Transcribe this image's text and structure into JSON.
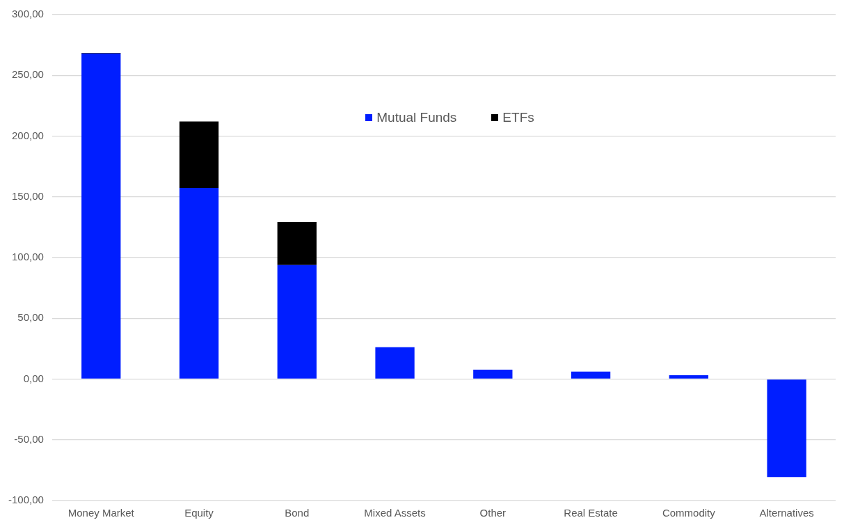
{
  "chart_data": {
    "type": "bar",
    "stacked": true,
    "categories": [
      "Money Market",
      "Equity",
      "Bond",
      "Mixed Assets",
      "Other",
      "Real Estate",
      "Commodity",
      "Alternatives"
    ],
    "series": [
      {
        "name": "Mutual Funds",
        "color": "#001eff",
        "values": [
          268,
          157.3,
          93.8,
          26.2,
          7.7,
          6.2,
          3.1,
          -80.7
        ]
      },
      {
        "name": "ETFs",
        "color": "#000000",
        "values": [
          0.5,
          54.7,
          35.4,
          null,
          null,
          0,
          null,
          null
        ]
      }
    ],
    "ylim": [
      -100,
      300
    ],
    "yticks": [
      {
        "value": -100,
        "label": "-100,00"
      },
      {
        "value": -50,
        "label": "-50,00"
      },
      {
        "value": 0,
        "label": "0,00"
      },
      {
        "value": 50,
        "label": "50,00"
      },
      {
        "value": 100,
        "label": "100,00"
      },
      {
        "value": 150,
        "label": "150,00"
      },
      {
        "value": 200,
        "label": "200,00"
      },
      {
        "value": 250,
        "label": "250,00"
      },
      {
        "value": 300,
        "label": "300,00"
      }
    ],
    "grid": "y",
    "legend": "top"
  }
}
